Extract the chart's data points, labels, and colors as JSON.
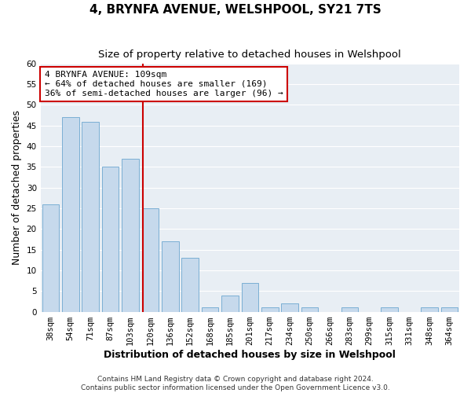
{
  "title": "4, BRYNFA AVENUE, WELSHPOOL, SY21 7TS",
  "subtitle": "Size of property relative to detached houses in Welshpool",
  "xlabel": "Distribution of detached houses by size in Welshpool",
  "ylabel": "Number of detached properties",
  "bar_labels": [
    "38sqm",
    "54sqm",
    "71sqm",
    "87sqm",
    "103sqm",
    "120sqm",
    "136sqm",
    "152sqm",
    "168sqm",
    "185sqm",
    "201sqm",
    "217sqm",
    "234sqm",
    "250sqm",
    "266sqm",
    "283sqm",
    "299sqm",
    "315sqm",
    "331sqm",
    "348sqm",
    "364sqm"
  ],
  "bar_values": [
    26,
    47,
    46,
    35,
    37,
    25,
    17,
    13,
    1,
    4,
    7,
    1,
    2,
    1,
    0,
    1,
    0,
    1,
    0,
    1,
    1
  ],
  "bar_color": "#c6d9ec",
  "bar_edge_color": "#7bafd4",
  "property_line_x": 4.65,
  "ylim": [
    0,
    60
  ],
  "yticks": [
    0,
    5,
    10,
    15,
    20,
    25,
    30,
    35,
    40,
    45,
    50,
    55,
    60
  ],
  "annotation_title": "4 BRYNFA AVENUE: 109sqm",
  "annotation_line1": "← 64% of detached houses are smaller (169)",
  "annotation_line2": "36% of semi-detached houses are larger (96) →",
  "annotation_box_color": "#ffffff",
  "annotation_box_edge": "#cc0000",
  "vline_color": "#cc0000",
  "footer1": "Contains HM Land Registry data © Crown copyright and database right 2024.",
  "footer2": "Contains public sector information licensed under the Open Government Licence v3.0.",
  "background_color": "#ffffff",
  "plot_bg_color": "#e8eef4",
  "grid_color": "#ffffff",
  "title_fontsize": 11,
  "subtitle_fontsize": 9.5,
  "axis_label_fontsize": 9,
  "tick_fontsize": 7.5,
  "footer_fontsize": 6.5,
  "annotation_fontsize": 8
}
